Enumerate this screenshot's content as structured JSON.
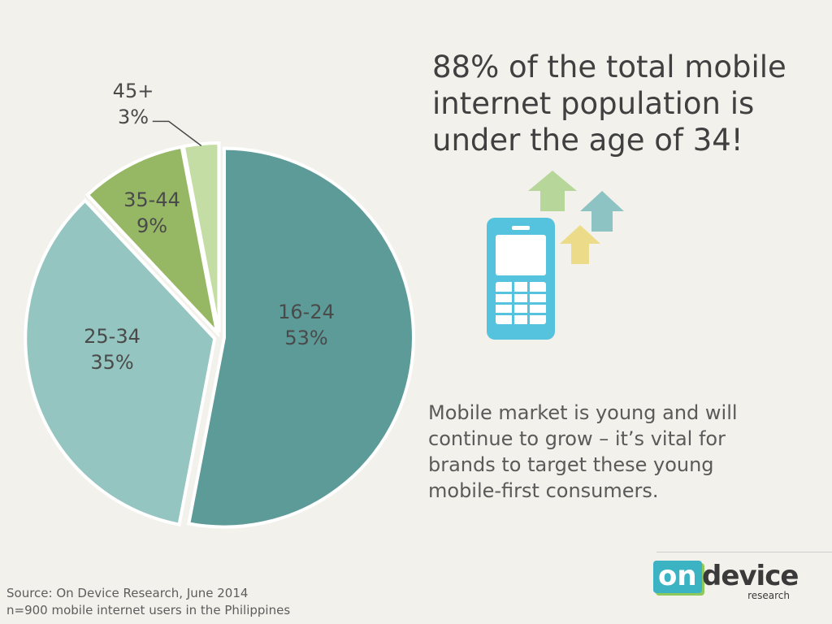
{
  "chart_data": {
    "type": "pie",
    "slices": [
      {
        "label": "16-24",
        "value": 53,
        "value_label": "53%",
        "color": "#5d9b98"
      },
      {
        "label": "25-34",
        "value": 35,
        "value_label": "35%",
        "color": "#95c5c0"
      },
      {
        "label": "35-44",
        "value": 9,
        "value_label": "9%",
        "color": "#96b865"
      },
      {
        "label": "45+",
        "value": 3,
        "value_label": "3%",
        "color": "#c4dda4"
      }
    ]
  },
  "headline": "88% of the total mobile internet population is under the age of 34!",
  "subtext": "Mobile market is young and will continue to grow – it’s vital for brands to target these young mobile-first consumers.",
  "source": {
    "line1": "Source: On Device Research, June 2014",
    "line2": "n=900 mobile internet users in the Philippines"
  },
  "logo": {
    "on": "on",
    "device": "device",
    "research": "research"
  },
  "icons": {
    "phone": "mobile-phone-icon",
    "arrows": [
      "arrow-up-icon",
      "arrow-up-icon",
      "arrow-up-icon"
    ]
  },
  "colors": {
    "phone": "#56c3de",
    "arrow_green": "#b6d69a",
    "arrow_teal": "#8dc3c2",
    "arrow_yellow": "#ecdc8a",
    "logo_teal": "#3bb3c3",
    "logo_green": "#8fc95a"
  }
}
